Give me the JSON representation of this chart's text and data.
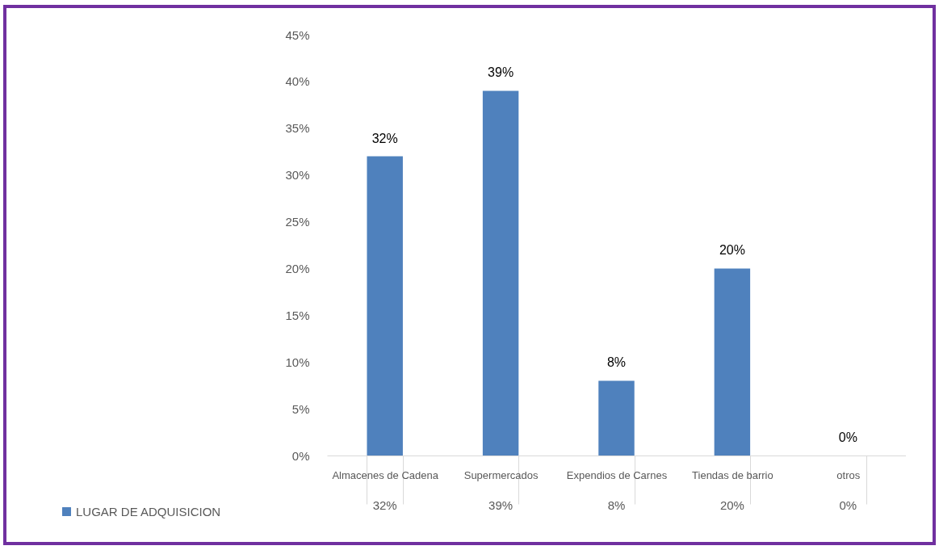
{
  "chart_data": {
    "type": "bar",
    "categories": [
      "Almacenes de Cadena",
      "Supermercados",
      "Expendios de Carnes",
      "Tiendas de barrio",
      "otros"
    ],
    "series": [
      {
        "name": "LUGAR DE ADQUISICION",
        "color": "#4f81bd",
        "values": [
          32,
          39,
          8,
          20,
          0
        ],
        "value_labels": [
          "32%",
          "39%",
          "8%",
          "20%",
          "0%"
        ]
      }
    ],
    "ylim": [
      0,
      45
    ],
    "yticks": [
      {
        "value": 0,
        "label": "0%"
      },
      {
        "value": 5,
        "label": "5%"
      },
      {
        "value": 10,
        "label": "10%"
      },
      {
        "value": 15,
        "label": "15%"
      },
      {
        "value": 20,
        "label": "20%"
      },
      {
        "value": 25,
        "label": "25%"
      },
      {
        "value": 30,
        "label": "30%"
      },
      {
        "value": 35,
        "label": "35%"
      },
      {
        "value": 40,
        "label": "40%"
      },
      {
        "value": 45,
        "label": "45%"
      }
    ],
    "grid": false,
    "legend": "bottom left"
  }
}
